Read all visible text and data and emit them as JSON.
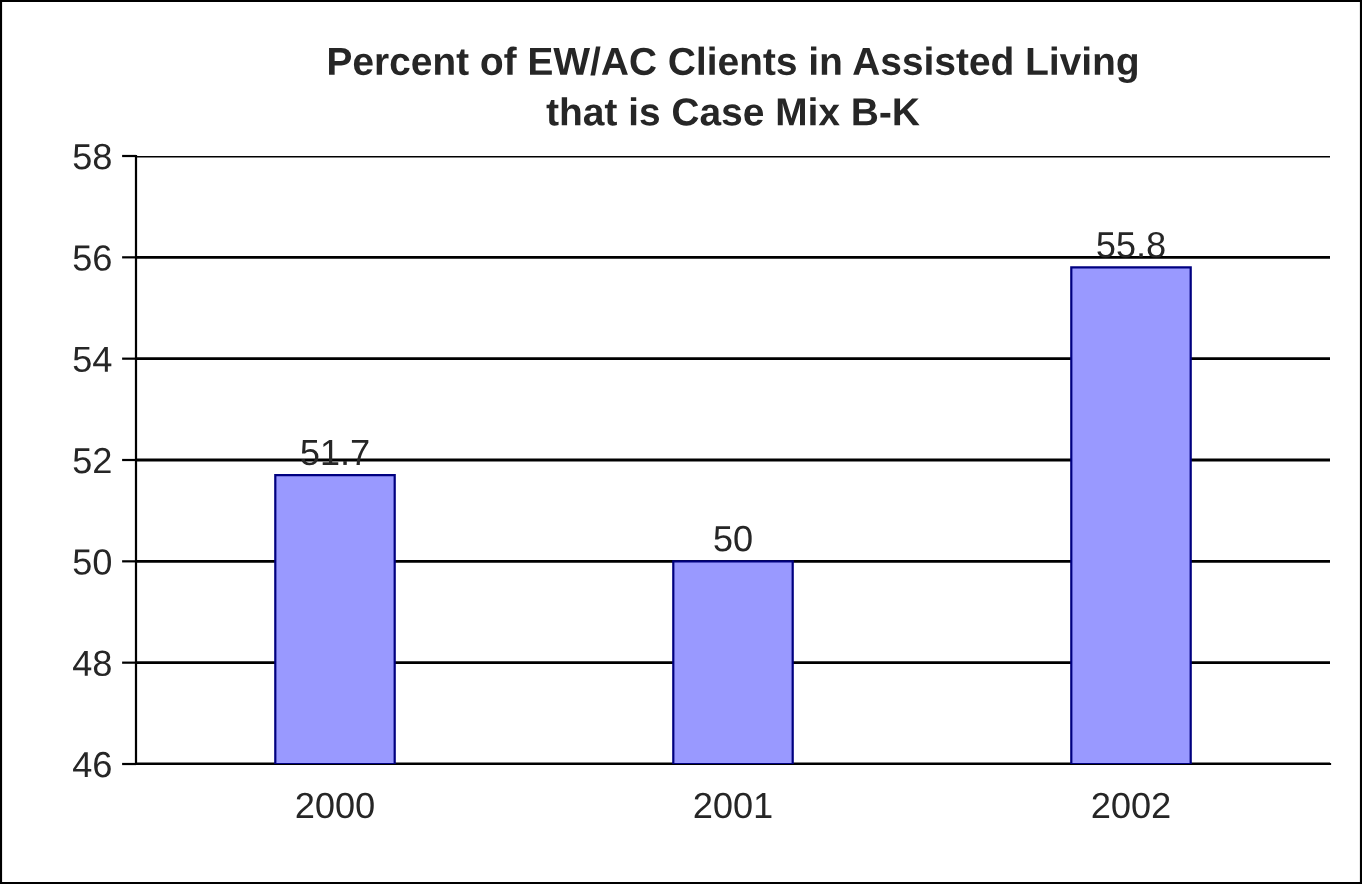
{
  "chart_data": {
    "type": "bar",
    "title": "Percent of EW/AC Clients in Assisted Living\nthat is Case Mix B-K",
    "categories": [
      "2000",
      "2001",
      "2002"
    ],
    "values": [
      51.7,
      50,
      55.8
    ],
    "color": "#9999ff",
    "ylim": [
      46,
      58
    ],
    "yticks": [
      46,
      48,
      50,
      52,
      54,
      56,
      58
    ],
    "grid": "y",
    "data_labels": true,
    "legend": false
  }
}
